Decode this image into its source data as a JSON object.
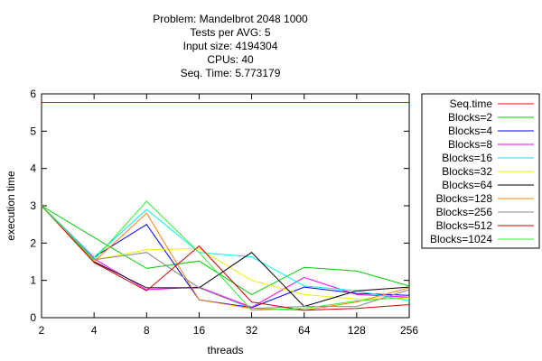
{
  "chart_data": {
    "type": "line",
    "title_lines": [
      "Problem: Mandelbrot 2048 1000",
      "Tests per AVG: 5",
      "Input size: 4194304",
      "CPUs: 40",
      "Seq. Time: 5.773179"
    ],
    "xlabel": "threads",
    "ylabel": "execution time",
    "categories": [
      "2",
      "4",
      "8",
      "16",
      "32",
      "64",
      "128",
      "256"
    ],
    "ylim": [
      0,
      6
    ],
    "yticks": [
      "0",
      "1",
      "2",
      "3",
      "4",
      "5",
      "6"
    ],
    "legend_position": "right",
    "series": [
      {
        "name": "Seq.time",
        "color": "#ff0000",
        "values": [
          5.77,
          5.77,
          5.77,
          5.77,
          5.77,
          5.77,
          5.77,
          5.77
        ]
      },
      {
        "name": "Blocks=2",
        "color": "#00cc00",
        "values": [
          3.0,
          2.15,
          1.32,
          1.52,
          0.62,
          1.35,
          1.25,
          0.85
        ]
      },
      {
        "name": "Blocks=4",
        "color": "#0000ff",
        "values": [
          3.0,
          1.62,
          2.5,
          0.48,
          0.27,
          0.82,
          0.65,
          0.6
        ]
      },
      {
        "name": "Blocks=8",
        "color": "#ff00ff",
        "values": [
          3.0,
          1.58,
          0.75,
          0.82,
          0.28,
          1.08,
          0.62,
          0.55
        ]
      },
      {
        "name": "Blocks=16",
        "color": "#00eeee",
        "values": [
          3.0,
          1.62,
          2.9,
          1.75,
          1.63,
          0.85,
          0.72,
          0.45
        ]
      },
      {
        "name": "Blocks=32",
        "color": "#eeee00",
        "values": [
          3.0,
          1.55,
          1.82,
          1.85,
          1.0,
          0.62,
          0.5,
          0.52
        ]
      },
      {
        "name": "Blocks=64",
        "color": "#000000",
        "values": [
          3.0,
          1.5,
          0.8,
          0.8,
          1.75,
          0.3,
          0.72,
          0.82
        ]
      },
      {
        "name": "Blocks=128",
        "color": "#ff8000",
        "values": [
          3.0,
          1.5,
          2.8,
          0.48,
          0.25,
          0.2,
          0.42,
          0.8
        ]
      },
      {
        "name": "Blocks=256",
        "color": "#888888",
        "values": [
          3.0,
          1.55,
          1.75,
          0.8,
          0.25,
          0.3,
          0.3,
          0.75
        ]
      },
      {
        "name": "Blocks=512",
        "color": "#cc0000",
        "values": [
          3.0,
          1.48,
          0.72,
          1.92,
          0.42,
          0.2,
          0.25,
          0.35
        ]
      },
      {
        "name": "Blocks=1024",
        "color": "#33ee33",
        "values": [
          3.0,
          1.55,
          3.12,
          1.75,
          0.2,
          0.25,
          0.45,
          0.55
        ]
      }
    ]
  }
}
